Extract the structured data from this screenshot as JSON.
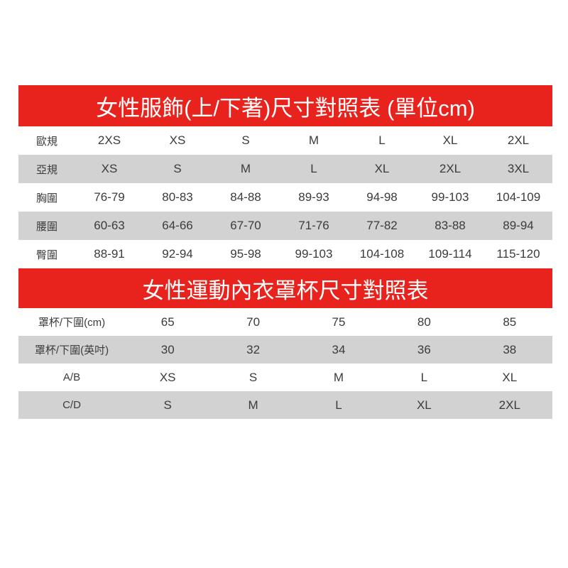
{
  "colors": {
    "header_bg": "#e8231d",
    "header_text": "#ffffff",
    "row_bg": "#ffffff",
    "row_alt_bg": "#d2d2d2",
    "text": "#3b3b3b"
  },
  "tables": [
    {
      "title": "女性服飾(上/下著)尺寸對照表 (單位cm)",
      "rows": [
        {
          "label": "歐規",
          "values": [
            "2XS",
            "XS",
            "S",
            "M",
            "L",
            "XL",
            "2XL"
          ]
        },
        {
          "label": "亞規",
          "values": [
            "XS",
            "S",
            "M",
            "L",
            "XL",
            "2XL",
            "3XL"
          ]
        },
        {
          "label": "胸圍",
          "values": [
            "76-79",
            "80-83",
            "84-88",
            "89-93",
            "94-98",
            "99-103",
            "104-109"
          ]
        },
        {
          "label": "腰圍",
          "values": [
            "60-63",
            "64-66",
            "67-70",
            "71-76",
            "77-82",
            "83-88",
            "89-94"
          ]
        },
        {
          "label": "臀圍",
          "values": [
            "88-91",
            "92-94",
            "95-98",
            "99-103",
            "104-108",
            "109-114",
            "115-120"
          ]
        }
      ]
    },
    {
      "title": "女性運動內衣罩杯尺寸對照表",
      "rows": [
        {
          "label": "罩杯/下圍(cm)",
          "values": [
            "65",
            "70",
            "75",
            "80",
            "85"
          ]
        },
        {
          "label": "罩杯/下圍(英吋)",
          "values": [
            "30",
            "32",
            "34",
            "36",
            "38"
          ]
        },
        {
          "label": "A/B",
          "values": [
            "XS",
            "S",
            "M",
            "L",
            "XL"
          ]
        },
        {
          "label": "C/D",
          "values": [
            "S",
            "M",
            "L",
            "XL",
            "2XL"
          ]
        }
      ]
    }
  ]
}
